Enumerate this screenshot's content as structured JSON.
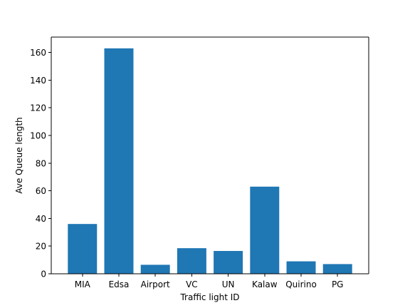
{
  "chart_data": {
    "type": "bar",
    "title": "",
    "xlabel": "Traffic light ID",
    "ylabel": "Ave Queue length",
    "categories": [
      "MIA",
      "Edsa",
      "Airport",
      "VC",
      "UN",
      "Kalaw",
      "Quirino",
      "PG"
    ],
    "values": [
      36,
      163,
      6.5,
      18.5,
      16.5,
      63,
      9,
      7
    ],
    "ylim": [
      0,
      171.15
    ],
    "yticks": [
      0,
      20,
      40,
      60,
      80,
      100,
      120,
      140,
      160
    ],
    "grid": false,
    "bar_color": "#1f77b4"
  }
}
